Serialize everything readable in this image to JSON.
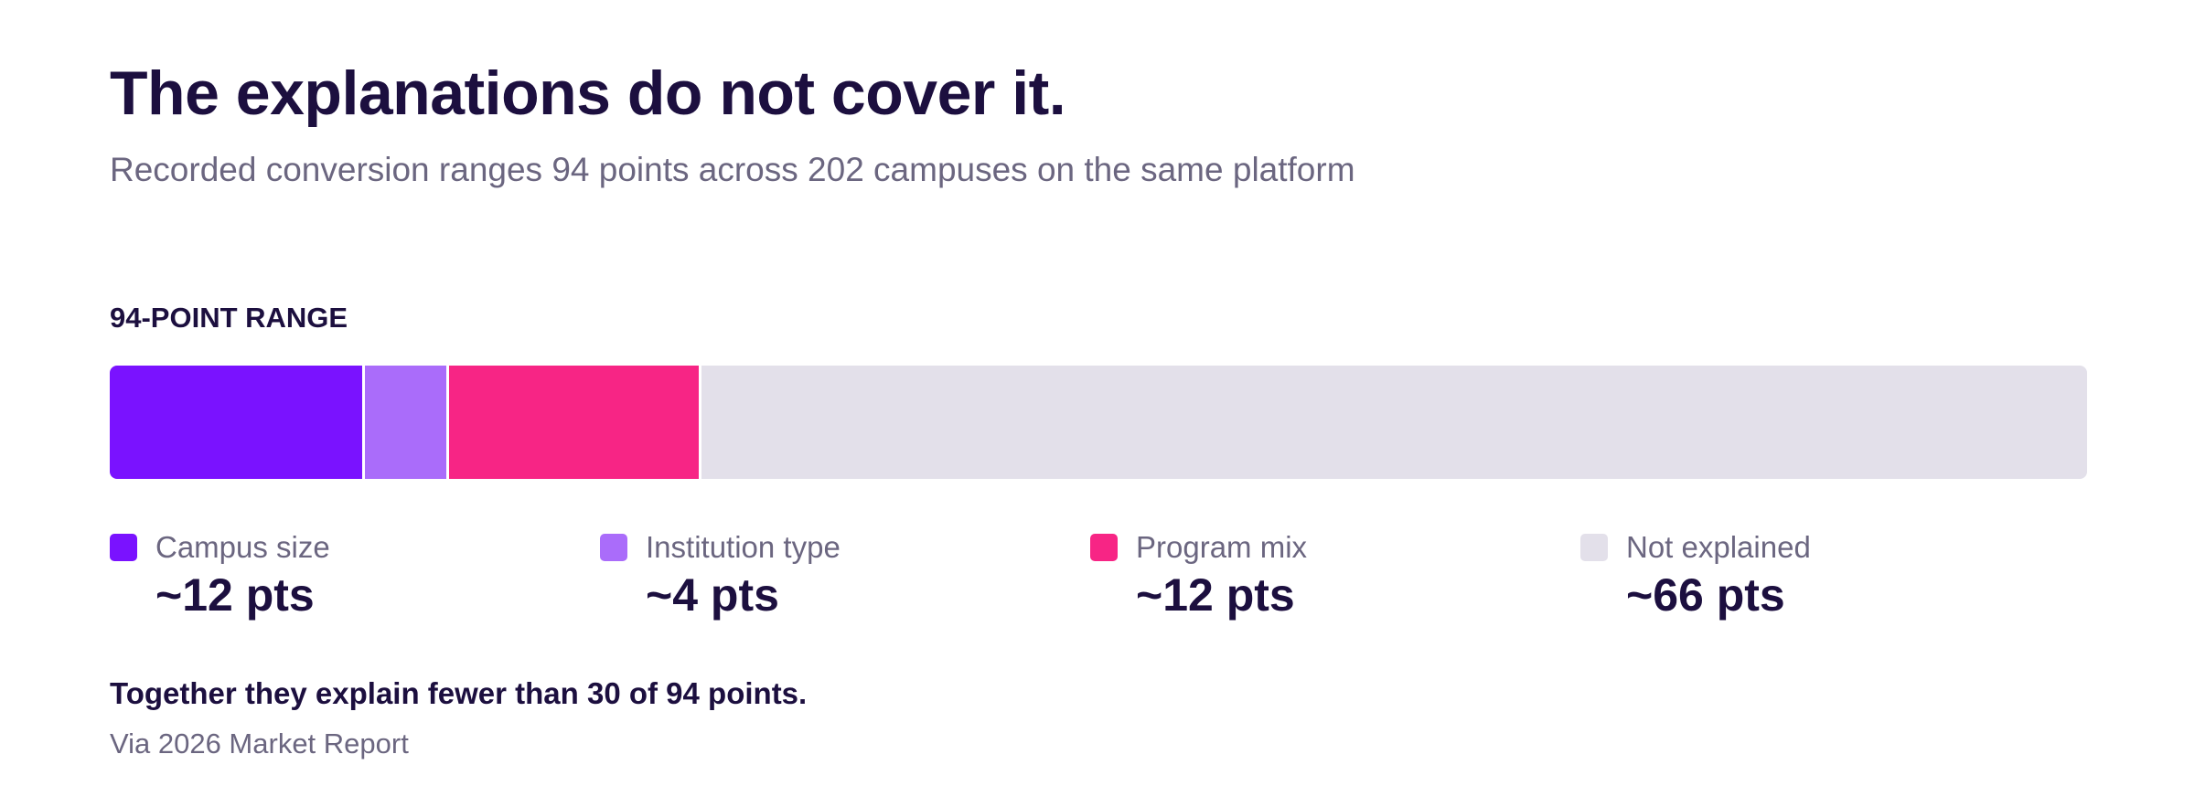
{
  "header": {
    "title": "The explanations do not cover it.",
    "subtitle": "Recorded conversion ranges 94 points across 202 campuses on the same platform"
  },
  "chart_data": {
    "type": "bar",
    "orientation": "horizontal-stacked",
    "title": "94-POINT RANGE",
    "total": 94,
    "categories": [
      "Campus size",
      "Institution type",
      "Program mix",
      "Not explained"
    ],
    "values": [
      12,
      4,
      12,
      66
    ],
    "value_labels": [
      "~12 pts",
      "~4 pts",
      "~12 pts",
      "~66 pts"
    ],
    "colors": [
      "#7a12ff",
      "#aa6cfa",
      "#f72585",
      "#e3e0ea"
    ],
    "legend_position": "bottom",
    "grid": false
  },
  "footer": {
    "conclusion": "Together they explain fewer than 30 of 94 points.",
    "source": "Via 2026 Market Report"
  }
}
